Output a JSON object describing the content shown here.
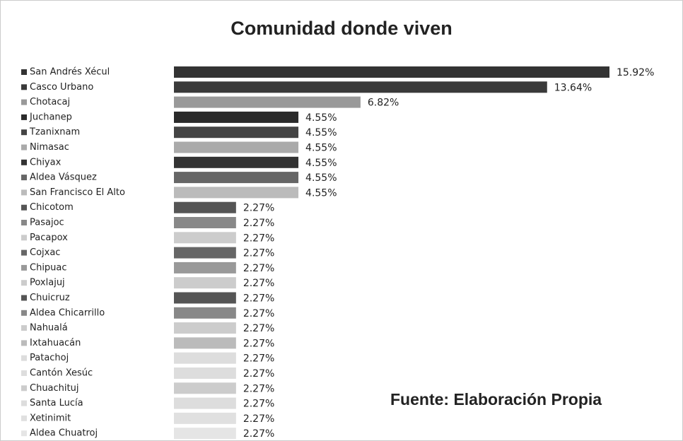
{
  "chart_data": {
    "type": "barh",
    "title": "Comunidad donde viven",
    "annotation": "Fuente: Elaboración  Propia",
    "categories": [
      "San Andrés Xécul",
      "Casco Urbano",
      "Chotacaj",
      "Juchanep",
      "Tzanixnam",
      "Nimasac",
      "Chiyax",
      "Aldea Vásquez",
      "San Francisco El Alto",
      "Chicotom",
      "Pasajoc",
      "Pacapox",
      "Cojxac",
      "Chipuac",
      "Poxlajuj",
      "Chuicruz",
      "Aldea Chicarrillo",
      "Nahualá",
      "Ixtahuacán",
      "Patachoj",
      "Cantón Xesúc",
      "Chuachituj",
      "Santa Lucía",
      "Xetinimit",
      "Aldea Chuatroj"
    ],
    "values": [
      15.92,
      13.64,
      6.82,
      4.55,
      4.55,
      4.55,
      4.55,
      4.55,
      4.55,
      2.27,
      2.27,
      2.27,
      2.27,
      2.27,
      2.27,
      2.27,
      2.27,
      2.27,
      2.27,
      2.27,
      2.27,
      2.27,
      2.27,
      2.27,
      2.27
    ],
    "value_labels": [
      "15.92%",
      "13.64%",
      "6.82%",
      "4.55%",
      "4.55%",
      "4.55%",
      "4.55%",
      "4.55%",
      "4.55%",
      "2.27%",
      "2.27%",
      "2.27%",
      "2.27%",
      "2.27%",
      "2.27%",
      "2.27%",
      "2.27%",
      "2.27%",
      "2.27%",
      "2.27%",
      "2.27%",
      "2.27%",
      "2.27%",
      "2.27%",
      "2.27%"
    ],
    "colors": [
      "#333333",
      "#3a3a3a",
      "#999999",
      "#2a2a2a",
      "#444444",
      "#aaaaaa",
      "#333333",
      "#666666",
      "#bbbbbb",
      "#555555",
      "#888888",
      "#cccccc",
      "#666666",
      "#999999",
      "#cccccc",
      "#555555",
      "#888888",
      "#cccccc",
      "#bbbbbb",
      "#dddddd",
      "#dddddd",
      "#cccccc",
      "#dddddd",
      "#e0e0e0",
      "#e5e5e5"
    ]
  }
}
